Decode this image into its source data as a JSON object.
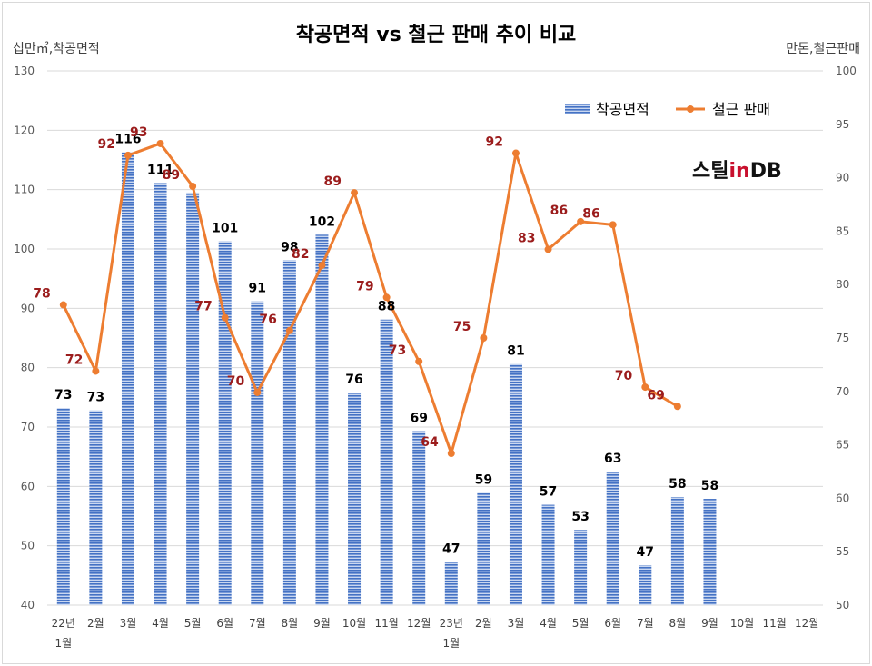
{
  "chart_data": {
    "type": "bar+line",
    "title": "착공면적 vs 철근 판매 추이 비교",
    "left_axis_unit": "십만㎡,착공면적",
    "right_axis_unit": "만톤,철근판매",
    "categories": [
      [
        "22년",
        "1월"
      ],
      [
        "2월"
      ],
      [
        "3월"
      ],
      [
        "4월"
      ],
      [
        "5월"
      ],
      [
        "6월"
      ],
      [
        "7월"
      ],
      [
        "8월"
      ],
      [
        "9월"
      ],
      [
        "10월"
      ],
      [
        "11월"
      ],
      [
        "12월"
      ],
      [
        "23년",
        "1월"
      ],
      [
        "2월"
      ],
      [
        "3월"
      ],
      [
        "4월"
      ],
      [
        "5월"
      ],
      [
        "6월"
      ],
      [
        "7월"
      ],
      [
        "8월"
      ],
      [
        "9월"
      ],
      [
        "10월"
      ],
      [
        "11월"
      ],
      [
        "12월"
      ]
    ],
    "left_axis": {
      "min": 40,
      "max": 130,
      "step": 10
    },
    "right_axis": {
      "min": 50,
      "max": 100,
      "step": 5
    },
    "series": [
      {
        "name": "착공면적",
        "type": "bar",
        "axis": "left",
        "color": "#4472c4",
        "values": [
          73.2,
          72.8,
          116.3,
          111.1,
          109.5,
          101.3,
          91.2,
          98.1,
          102.4,
          75.8,
          88.1,
          69.3,
          47.3,
          58.9,
          80.6,
          56.9,
          52.7,
          62.5,
          46.7,
          58.2,
          57.9,
          null,
          null,
          null
        ],
        "labels": [
          "73",
          "73",
          "116",
          "111",
          "",
          "101",
          "91",
          "98",
          "102",
          "76",
          "88",
          "69",
          "47",
          "59",
          "81",
          "57",
          "53",
          "63",
          "47",
          "58",
          "58",
          "",
          "",
          ""
        ]
      },
      {
        "name": "철근 판매",
        "type": "line",
        "axis": "right",
        "color": "#ed7d31",
        "values": [
          78.1,
          71.9,
          92.1,
          93.2,
          89.2,
          76.9,
          69.9,
          75.7,
          81.8,
          88.6,
          78.8,
          72.8,
          64.2,
          75.0,
          92.3,
          83.3,
          85.9,
          85.6,
          70.4,
          68.6,
          null,
          null,
          null,
          null
        ],
        "labels": [
          "78",
          "72",
          "92",
          "93",
          "89",
          "77",
          "70",
          "76",
          "82",
          "89",
          "79",
          "73",
          "64",
          "75",
          "92",
          "83",
          "86",
          "86",
          "70",
          "69",
          "",
          "",
          "",
          ""
        ]
      }
    ],
    "legend_position": "top-right",
    "grid": true
  },
  "logo": {
    "part1": "스틸",
    "part2": "in",
    "part3": "DB"
  }
}
